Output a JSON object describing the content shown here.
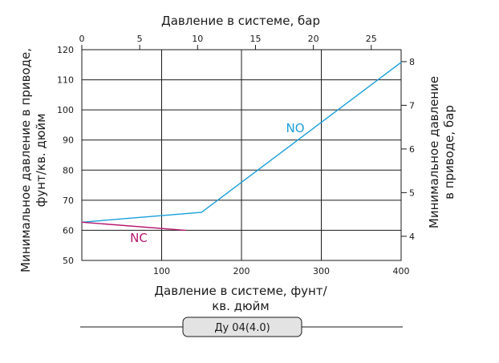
{
  "chart_data": {
    "type": "line",
    "title": "",
    "x": {
      "label_lines": [
        "Давление в системе, фунт/",
        "кв. дюйм"
      ],
      "range": [
        0,
        400
      ],
      "ticks": [
        100,
        200,
        300,
        400
      ]
    },
    "x2": {
      "label": "Давление в системе, бар",
      "range": [
        0,
        27.58
      ],
      "ticks": [
        0,
        5,
        10,
        15,
        20,
        25
      ]
    },
    "y": {
      "label_lines": [
        "Минимальное давление в приводе,",
        "фунт/кв. дюйм"
      ],
      "range": [
        50,
        120
      ],
      "ticks": [
        50,
        60,
        70,
        80,
        90,
        100,
        110,
        120
      ]
    },
    "y2": {
      "label_lines": [
        "Минимальное давление",
        "в приводе, бар"
      ],
      "range": [
        3.447,
        8.274
      ],
      "ticks": [
        4,
        5,
        6,
        7,
        8
      ]
    },
    "grid": true,
    "series": [
      {
        "name": "NO",
        "color": "#1a9fd9",
        "points": [
          [
            0,
            62.7
          ],
          [
            150,
            66
          ],
          [
            400,
            115.8
          ]
        ]
      },
      {
        "name": "NC",
        "color": "#b5166e",
        "points": [
          [
            0,
            62.7
          ],
          [
            130,
            60
          ]
        ]
      }
    ]
  },
  "badge": {
    "label": "Ду 04(4.0)"
  }
}
